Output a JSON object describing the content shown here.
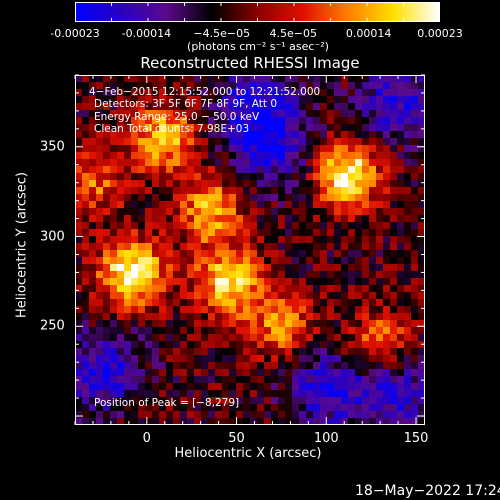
{
  "chart_data": {
    "type": "heatmap",
    "title": "Reconstructed RHESSI Image",
    "xlabel": "Heliocentric X (arcsec)",
    "ylabel": "Heliocentric Y (arcsec)",
    "xlim": [
      -40,
      155
    ],
    "ylim": [
      195,
      390
    ],
    "x_ticks": [
      0,
      50,
      100,
      150
    ],
    "y_ticks": [
      250,
      300,
      350
    ],
    "colorbar": {
      "ticks": [
        "-0.00023",
        "-0.00014",
        "−4.5e−05",
        "4.5e−05",
        "0.00014",
        "0.00023"
      ],
      "tick_values": [
        -0.00023,
        -0.00014,
        -4.5e-05,
        4.5e-05,
        0.00014,
        0.00023
      ],
      "range": [
        -0.00023,
        0.00023
      ],
      "units": "(photons cm⁻² s⁻¹ asec⁻²)",
      "colormap": [
        "#0000ff",
        "#2a00c0",
        "#5a0a8a",
        "#000000",
        "#8a0000",
        "#e01000",
        "#ff8000",
        "#ffe000",
        "#ffffff"
      ]
    },
    "annotations": {
      "time_range": "4−Feb−2015 12:15:52.000 to 12:21:52.000",
      "detectors": "Detectors: 3F 5F 6F 7F 8F 9F, Att 0",
      "energy_range": "Energy Range: 25.0 − 50.0 keV",
      "method": "Clean    Total counts: 7.98E+03",
      "peak": "Position of Peak = [−8,279]"
    },
    "bright_sources": [
      {
        "x": -8,
        "y": 279,
        "relative_intensity": 1.0
      },
      {
        "x": 112,
        "y": 335,
        "relative_intensity": 0.95
      },
      {
        "x": 45,
        "y": 275,
        "relative_intensity": 0.85
      },
      {
        "x": 10,
        "y": 355,
        "relative_intensity": 0.75
      },
      {
        "x": 35,
        "y": 315,
        "relative_intensity": 0.7
      },
      {
        "x": 75,
        "y": 250,
        "relative_intensity": 0.6
      },
      {
        "x": 130,
        "y": 240,
        "relative_intensity": 0.6
      },
      {
        "x": -30,
        "y": 330,
        "relative_intensity": 0.5
      }
    ],
    "dark_regions": [
      {
        "x": 60,
        "y": 375
      },
      {
        "x": 140,
        "y": 215
      },
      {
        "x": 100,
        "y": 215
      },
      {
        "x": -25,
        "y": 225
      },
      {
        "x": 70,
        "y": 350
      },
      {
        "x": 140,
        "y": 375
      }
    ]
  },
  "footer": {
    "timestamp": "18−May−2022 17:24"
  }
}
